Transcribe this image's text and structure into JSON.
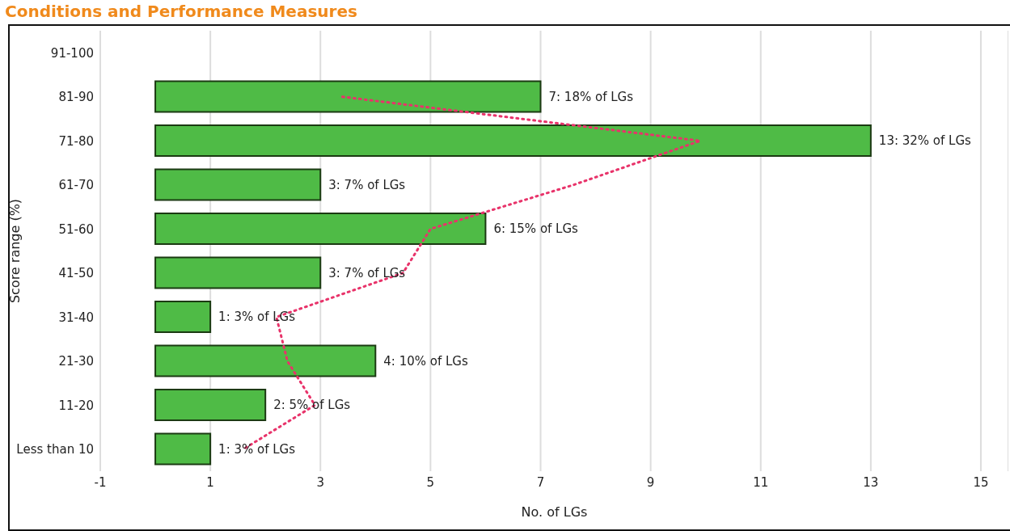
{
  "chart_data": {
    "type": "bar",
    "orientation": "horizontal",
    "title": "Conditions and Performance Measures",
    "xlabel": "No. of LGs",
    "ylabel": "Score range (%)",
    "categories": [
      "91-100",
      "81-90",
      "71-80",
      "61-70",
      "51-60",
      "41-50",
      "31-40",
      "21-30",
      "11-20",
      "Less than 10"
    ],
    "series": [
      {
        "color": "#4fbb46",
        "values": [
          0,
          7,
          13,
          3,
          6,
          3,
          1,
          4,
          2,
          1
        ],
        "value_labels": [
          null,
          "7: 18% of LGs",
          "13: 32% of LGs",
          "3: 7% of LGs",
          "6: 15% of LGs",
          "3: 7% of LGs",
          "1: 3% of LGs",
          "4: 10% of LGs",
          "2: 5% of LGs",
          "1: 3% of LGs"
        ]
      },
      {
        "type": "line",
        "color": "#e8336a",
        "line_style": "dotted",
        "marker": "none",
        "values": [
          null,
          3.4,
          9.9,
          7.6,
          5.0,
          4.5,
          2.2,
          2.4,
          2.9,
          1.6
        ]
      }
    ],
    "xlim": [
      -1,
      15.5
    ],
    "xticks": [
      -1,
      1,
      3,
      5,
      7,
      9,
      11,
      13,
      15
    ],
    "grid": "x",
    "legend": false
  }
}
